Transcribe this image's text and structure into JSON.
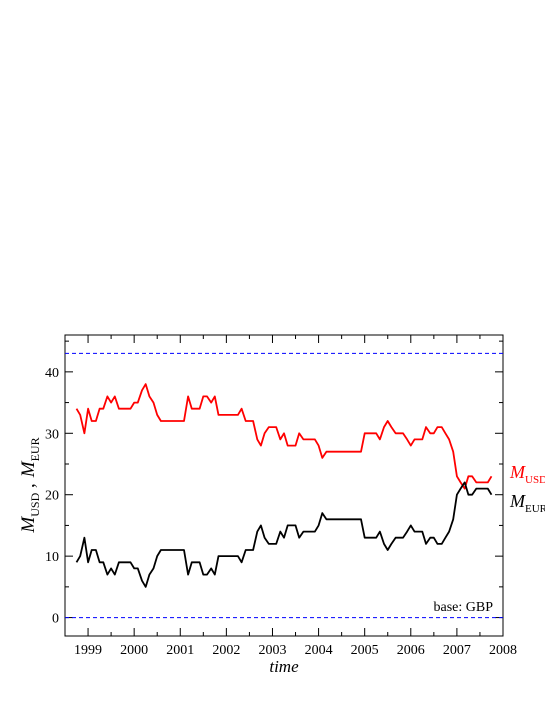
{
  "chart_data": {
    "type": "line",
    "xlabel": "time",
    "ylabel_main": "M",
    "ylabel_sub1": "USD",
    "ylabel_sep": " ,",
    "ylabel_sub2": "EUR",
    "xlim": [
      1998.5,
      2008.0
    ],
    "ylim": [
      -3,
      46
    ],
    "x_ticks": [
      1999,
      2000,
      2001,
      2002,
      2003,
      2004,
      2005,
      2006,
      2007,
      2008
    ],
    "y_ticks": [
      0,
      10,
      20,
      30,
      40
    ],
    "reference_lines": [
      {
        "y": 43,
        "color": "#0000ff",
        "style": "dashed"
      },
      {
        "y": 0,
        "color": "#0000ff",
        "style": "dashed"
      }
    ],
    "annotation": "base: GBP",
    "series": [
      {
        "label_main": "M",
        "label_sub": "USD",
        "color": "#ff0000",
        "points": [
          [
            1998.75,
            34
          ],
          [
            1998.83,
            33
          ],
          [
            1998.92,
            30
          ],
          [
            1999.0,
            34
          ],
          [
            1999.08,
            32
          ],
          [
            1999.17,
            32
          ],
          [
            1999.25,
            34
          ],
          [
            1999.33,
            34
          ],
          [
            1999.42,
            36
          ],
          [
            1999.5,
            35
          ],
          [
            1999.58,
            36
          ],
          [
            1999.67,
            34
          ],
          [
            1999.75,
            34
          ],
          [
            1999.83,
            34
          ],
          [
            1999.92,
            34
          ],
          [
            2000.0,
            35
          ],
          [
            2000.08,
            35
          ],
          [
            2000.17,
            37
          ],
          [
            2000.25,
            38
          ],
          [
            2000.33,
            36
          ],
          [
            2000.42,
            35
          ],
          [
            2000.5,
            33
          ],
          [
            2000.58,
            32
          ],
          [
            2000.67,
            32
          ],
          [
            2000.75,
            32
          ],
          [
            2000.83,
            32
          ],
          [
            2000.92,
            32
          ],
          [
            2001.0,
            32
          ],
          [
            2001.08,
            32
          ],
          [
            2001.17,
            36
          ],
          [
            2001.25,
            34
          ],
          [
            2001.33,
            34
          ],
          [
            2001.42,
            34
          ],
          [
            2001.5,
            36
          ],
          [
            2001.58,
            36
          ],
          [
            2001.67,
            35
          ],
          [
            2001.75,
            36
          ],
          [
            2001.83,
            33
          ],
          [
            2001.92,
            33
          ],
          [
            2002.0,
            33
          ],
          [
            2002.08,
            33
          ],
          [
            2002.17,
            33
          ],
          [
            2002.25,
            33
          ],
          [
            2002.33,
            34
          ],
          [
            2002.42,
            32
          ],
          [
            2002.5,
            32
          ],
          [
            2002.58,
            32
          ],
          [
            2002.67,
            29
          ],
          [
            2002.75,
            28
          ],
          [
            2002.83,
            30
          ],
          [
            2002.92,
            31
          ],
          [
            2003.0,
            31
          ],
          [
            2003.08,
            31
          ],
          [
            2003.17,
            29
          ],
          [
            2003.25,
            30
          ],
          [
            2003.33,
            28
          ],
          [
            2003.42,
            28
          ],
          [
            2003.5,
            28
          ],
          [
            2003.58,
            30
          ],
          [
            2003.67,
            29
          ],
          [
            2003.75,
            29
          ],
          [
            2003.83,
            29
          ],
          [
            2003.92,
            29
          ],
          [
            2004.0,
            28
          ],
          [
            2004.08,
            26
          ],
          [
            2004.17,
            27
          ],
          [
            2004.25,
            27
          ],
          [
            2004.33,
            27
          ],
          [
            2004.42,
            27
          ],
          [
            2004.5,
            27
          ],
          [
            2004.58,
            27
          ],
          [
            2004.67,
            27
          ],
          [
            2004.75,
            27
          ],
          [
            2004.83,
            27
          ],
          [
            2004.92,
            27
          ],
          [
            2005.0,
            30
          ],
          [
            2005.08,
            30
          ],
          [
            2005.17,
            30
          ],
          [
            2005.25,
            30
          ],
          [
            2005.33,
            29
          ],
          [
            2005.42,
            31
          ],
          [
            2005.5,
            32
          ],
          [
            2005.58,
            31
          ],
          [
            2005.67,
            30
          ],
          [
            2005.75,
            30
          ],
          [
            2005.83,
            30
          ],
          [
            2005.92,
            29
          ],
          [
            2006.0,
            28
          ],
          [
            2006.08,
            29
          ],
          [
            2006.17,
            29
          ],
          [
            2006.25,
            29
          ],
          [
            2006.33,
            31
          ],
          [
            2006.42,
            30
          ],
          [
            2006.5,
            30
          ],
          [
            2006.58,
            31
          ],
          [
            2006.67,
            31
          ],
          [
            2006.75,
            30
          ],
          [
            2006.83,
            29
          ],
          [
            2006.92,
            27
          ],
          [
            2007.0,
            23
          ],
          [
            2007.08,
            22
          ],
          [
            2007.17,
            21
          ],
          [
            2007.25,
            23
          ],
          [
            2007.33,
            23
          ],
          [
            2007.42,
            22
          ],
          [
            2007.5,
            22
          ],
          [
            2007.58,
            22
          ],
          [
            2007.67,
            22
          ],
          [
            2007.75,
            23
          ]
        ]
      },
      {
        "label_main": "M",
        "label_sub": "EUR",
        "color": "#000000",
        "points": [
          [
            1998.75,
            9
          ],
          [
            1998.83,
            10
          ],
          [
            1998.92,
            13
          ],
          [
            1999.0,
            9
          ],
          [
            1999.08,
            11
          ],
          [
            1999.17,
            11
          ],
          [
            1999.25,
            9
          ],
          [
            1999.33,
            9
          ],
          [
            1999.42,
            7
          ],
          [
            1999.5,
            8
          ],
          [
            1999.58,
            7
          ],
          [
            1999.67,
            9
          ],
          [
            1999.75,
            9
          ],
          [
            1999.83,
            9
          ],
          [
            1999.92,
            9
          ],
          [
            2000.0,
            8
          ],
          [
            2000.08,
            8
          ],
          [
            2000.17,
            6
          ],
          [
            2000.25,
            5
          ],
          [
            2000.33,
            7
          ],
          [
            2000.42,
            8
          ],
          [
            2000.5,
            10
          ],
          [
            2000.58,
            11
          ],
          [
            2000.67,
            11
          ],
          [
            2000.75,
            11
          ],
          [
            2000.83,
            11
          ],
          [
            2000.92,
            11
          ],
          [
            2001.0,
            11
          ],
          [
            2001.08,
            11
          ],
          [
            2001.17,
            7
          ],
          [
            2001.25,
            9
          ],
          [
            2001.33,
            9
          ],
          [
            2001.42,
            9
          ],
          [
            2001.5,
            7
          ],
          [
            2001.58,
            7
          ],
          [
            2001.67,
            8
          ],
          [
            2001.75,
            7
          ],
          [
            2001.83,
            10
          ],
          [
            2001.92,
            10
          ],
          [
            2002.0,
            10
          ],
          [
            2002.08,
            10
          ],
          [
            2002.17,
            10
          ],
          [
            2002.25,
            10
          ],
          [
            2002.33,
            9
          ],
          [
            2002.42,
            11
          ],
          [
            2002.5,
            11
          ],
          [
            2002.58,
            11
          ],
          [
            2002.67,
            14
          ],
          [
            2002.75,
            15
          ],
          [
            2002.83,
            13
          ],
          [
            2002.92,
            12
          ],
          [
            2003.0,
            12
          ],
          [
            2003.08,
            12
          ],
          [
            2003.17,
            14
          ],
          [
            2003.25,
            13
          ],
          [
            2003.33,
            15
          ],
          [
            2003.42,
            15
          ],
          [
            2003.5,
            15
          ],
          [
            2003.58,
            13
          ],
          [
            2003.67,
            14
          ],
          [
            2003.75,
            14
          ],
          [
            2003.83,
            14
          ],
          [
            2003.92,
            14
          ],
          [
            2004.0,
            15
          ],
          [
            2004.08,
            17
          ],
          [
            2004.17,
            16
          ],
          [
            2004.25,
            16
          ],
          [
            2004.33,
            16
          ],
          [
            2004.42,
            16
          ],
          [
            2004.5,
            16
          ],
          [
            2004.58,
            16
          ],
          [
            2004.67,
            16
          ],
          [
            2004.75,
            16
          ],
          [
            2004.83,
            16
          ],
          [
            2004.92,
            16
          ],
          [
            2005.0,
            13
          ],
          [
            2005.08,
            13
          ],
          [
            2005.17,
            13
          ],
          [
            2005.25,
            13
          ],
          [
            2005.33,
            14
          ],
          [
            2005.42,
            12
          ],
          [
            2005.5,
            11
          ],
          [
            2005.58,
            12
          ],
          [
            2005.67,
            13
          ],
          [
            2005.75,
            13
          ],
          [
            2005.83,
            13
          ],
          [
            2005.92,
            14
          ],
          [
            2006.0,
            15
          ],
          [
            2006.08,
            14
          ],
          [
            2006.17,
            14
          ],
          [
            2006.25,
            14
          ],
          [
            2006.33,
            12
          ],
          [
            2006.42,
            13
          ],
          [
            2006.5,
            13
          ],
          [
            2006.58,
            12
          ],
          [
            2006.67,
            12
          ],
          [
            2006.75,
            13
          ],
          [
            2006.83,
            14
          ],
          [
            2006.92,
            16
          ],
          [
            2007.0,
            20
          ],
          [
            2007.08,
            21
          ],
          [
            2007.17,
            22
          ],
          [
            2007.25,
            20
          ],
          [
            2007.33,
            20
          ],
          [
            2007.42,
            21
          ],
          [
            2007.5,
            21
          ],
          [
            2007.58,
            21
          ],
          [
            2007.67,
            21
          ],
          [
            2007.75,
            20
          ]
        ]
      }
    ]
  }
}
